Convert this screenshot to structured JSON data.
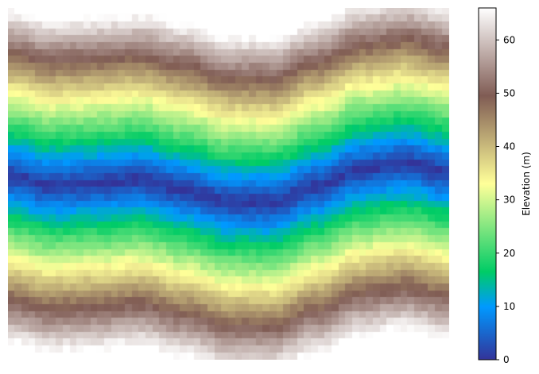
{
  "chart_data": {
    "type": "heatmap",
    "title": "",
    "xlabel": "",
    "ylabel": "",
    "axes_visible": false,
    "grid": false,
    "grid_size": {
      "cols": 64,
      "rows": 51
    },
    "colormap": "terrain",
    "colorbar": {
      "label": "Elevation (m)",
      "position": "right",
      "range": [
        0,
        66
      ],
      "ticks": [
        0,
        10,
        20,
        30,
        40,
        50,
        60
      ],
      "tick_labels": [
        "0",
        "10",
        "20",
        "30",
        "40",
        "50",
        "60"
      ],
      "stops": [
        {
          "value": 0.0,
          "color": "#333399"
        },
        {
          "value": 0.15,
          "color": "#0099ff"
        },
        {
          "value": 0.25,
          "color": "#00cc66"
        },
        {
          "value": 0.5,
          "color": "#ffff99"
        },
        {
          "value": 0.75,
          "color": "#805c54"
        },
        {
          "value": 1.0,
          "color": "#ffffff"
        }
      ]
    },
    "field": {
      "description": "river valley elevation",
      "valley_centerline_rows": [
        24.5,
        25.8,
        25.5,
        25.0,
        26.5,
        28.2,
        28.3,
        26.0,
        23.5,
        22.6,
        24.0
      ],
      "valley_centerline_cols": [
        0,
        6.4,
        12.8,
        19.2,
        25.6,
        32.0,
        38.4,
        44.8,
        51.2,
        57.6,
        64
      ],
      "min_elevation": 0,
      "max_elevation": 66,
      "elevation_per_row_distance": 2.75
    }
  }
}
